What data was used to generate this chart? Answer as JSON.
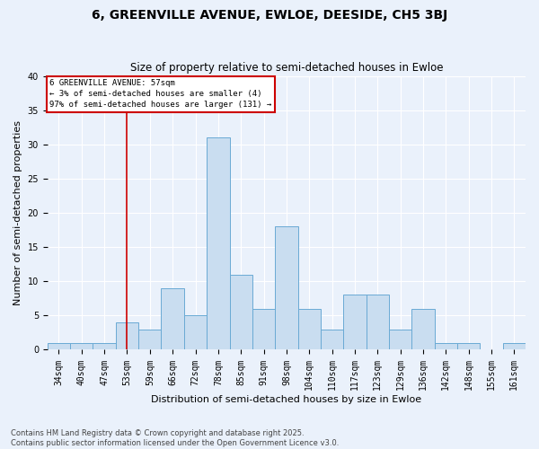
{
  "title": "6, GREENVILLE AVENUE, EWLOE, DEESIDE, CH5 3BJ",
  "subtitle": "Size of property relative to semi-detached houses in Ewloe",
  "xlabel": "Distribution of semi-detached houses by size in Ewloe",
  "ylabel": "Number of semi-detached properties",
  "bar_color": "#c9ddf0",
  "bar_edge_color": "#6aaad4",
  "bg_color": "#eaf1fb",
  "grid_color": "#ffffff",
  "vline_color": "#cc0000",
  "vline_x_bin": 3,
  "annotation_text": "6 GREENVILLE AVENUE: 57sqm\n← 3% of semi-detached houses are smaller (4)\n97% of semi-detached houses are larger (131) →",
  "annotation_box_color": "#cc0000",
  "bin_labels": [
    "34sqm",
    "40sqm",
    "47sqm",
    "53sqm",
    "59sqm",
    "66sqm",
    "72sqm",
    "78sqm",
    "85sqm",
    "91sqm",
    "98sqm",
    "104sqm",
    "110sqm",
    "117sqm",
    "123sqm",
    "129sqm",
    "136sqm",
    "142sqm",
    "148sqm",
    "155sqm",
    "161sqm"
  ],
  "counts": [
    1,
    1,
    1,
    4,
    3,
    9,
    5,
    31,
    11,
    6,
    18,
    6,
    3,
    8,
    8,
    3,
    6,
    1,
    1,
    0,
    1
  ],
  "ylim": [
    0,
    40
  ],
  "yticks": [
    0,
    5,
    10,
    15,
    20,
    25,
    30,
    35,
    40
  ],
  "footnote": "Contains HM Land Registry data © Crown copyright and database right 2025.\nContains public sector information licensed under the Open Government Licence v3.0.",
  "title_fontsize": 10,
  "subtitle_fontsize": 8.5,
  "label_fontsize": 8,
  "tick_fontsize": 7,
  "footnote_fontsize": 6
}
